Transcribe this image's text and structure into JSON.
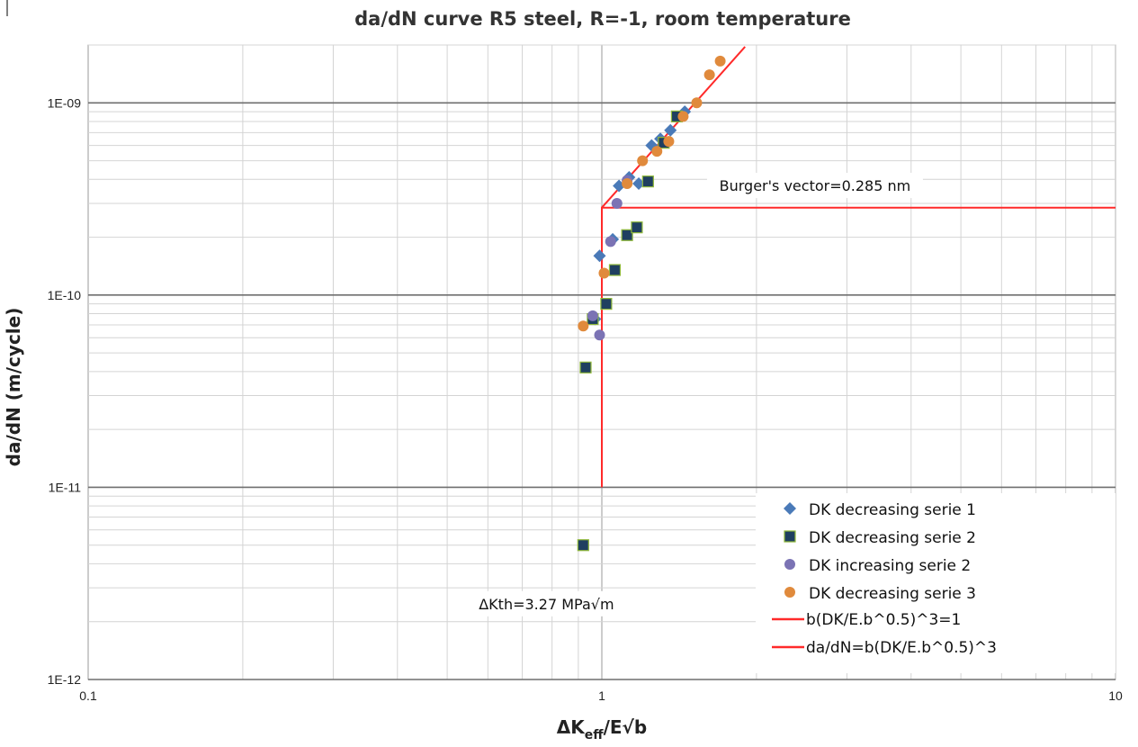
{
  "chart_data": {
    "type": "scatter",
    "title": "da/dN curve R5 steel, R=-1, room temperature",
    "xlabel": "ΔK eff/E√b",
    "xlabel_main": "ΔK",
    "xlabel_sub": "eff",
    "xlabel_tail": "/E√b",
    "ylabel": "da/dN (m/cycle)",
    "x_scale": "log",
    "y_scale": "log",
    "xlim": [
      0.1,
      10
    ],
    "ylim": [
      1e-12,
      2e-09
    ],
    "x_ticks": [
      {
        "value": 0.1,
        "label": "0.1"
      },
      {
        "value": 1,
        "label": "1"
      },
      {
        "value": 10,
        "label": "10"
      }
    ],
    "y_ticks": [
      {
        "value": 1e-12,
        "label": "1E-12"
      },
      {
        "value": 1e-11,
        "label": "1E-11"
      },
      {
        "value": 1e-10,
        "label": "1E-10"
      },
      {
        "value": 1e-09,
        "label": "1E-09"
      }
    ],
    "grid": true,
    "legend_position": "bottom-right",
    "series": [
      {
        "name": "DK decreasing serie 1",
        "marker": "diamond",
        "color": "#4a7ab8",
        "points": [
          [
            0.99,
            1.6e-10
          ],
          [
            1.08,
            3.7e-10
          ],
          [
            1.13,
            4.1e-10
          ],
          [
            1.18,
            3.8e-10
          ],
          [
            1.25,
            6e-10
          ],
          [
            1.3,
            6.5e-10
          ],
          [
            1.36,
            7.2e-10
          ],
          [
            1.45,
            9e-10
          ],
          [
            1.05,
            1.95e-10
          ],
          [
            0.97,
            7.5e-11
          ]
        ]
      },
      {
        "name": "DK decreasing serie 2",
        "marker": "square",
        "color": "#1f3f60",
        "points": [
          [
            0.92,
            5e-12
          ],
          [
            0.93,
            4.2e-11
          ],
          [
            0.96,
            7.5e-11
          ],
          [
            1.02,
            9e-11
          ],
          [
            1.06,
            1.35e-10
          ],
          [
            1.12,
            2.05e-10
          ],
          [
            1.17,
            2.25e-10
          ],
          [
            1.23,
            3.9e-10
          ],
          [
            1.32,
            6.2e-10
          ],
          [
            1.4,
            8.5e-10
          ]
        ]
      },
      {
        "name": "DK increasing serie 2",
        "marker": "circle",
        "color": "#7b73b4",
        "points": [
          [
            0.96,
            7.8e-11
          ],
          [
            0.99,
            6.2e-11
          ],
          [
            1.04,
            1.9e-10
          ],
          [
            1.07,
            3e-10
          ],
          [
            1.12,
            3.95e-10
          ]
        ]
      },
      {
        "name": "DK decreasing serie 3",
        "marker": "circle",
        "color": "#e08a3c",
        "points": [
          [
            0.92,
            6.9e-11
          ],
          [
            1.01,
            1.3e-10
          ],
          [
            1.12,
            3.8e-10
          ],
          [
            1.2,
            5e-10
          ],
          [
            1.28,
            5.6e-10
          ],
          [
            1.35,
            6.3e-10
          ],
          [
            1.44,
            8.5e-10
          ],
          [
            1.53,
            1e-09
          ],
          [
            1.62,
            1.4e-09
          ],
          [
            1.7,
            1.65e-09
          ]
        ]
      }
    ],
    "lines": [
      {
        "name": "b(DK/E.b^0.5)^3=1",
        "color": "#ff2a2a",
        "points": [
          [
            1,
            1e-11
          ],
          [
            1,
            2.85e-10
          ],
          [
            10,
            2.85e-10
          ]
        ]
      },
      {
        "name": "da/dN=b(DK/E.b^0.5)^3",
        "color": "#ff2a2a",
        "points": [
          [
            1,
            2.85e-10
          ],
          [
            1.9,
            1.96e-09
          ]
        ]
      }
    ],
    "annotations": [
      {
        "text": "Burger's vector=0.285 nm",
        "x": 2.6,
        "y": 3.6e-10
      },
      {
        "text": "ΔKth=3.27 MPa√m",
        "x": 0.78,
        "y": 2.4e-12
      }
    ]
  }
}
